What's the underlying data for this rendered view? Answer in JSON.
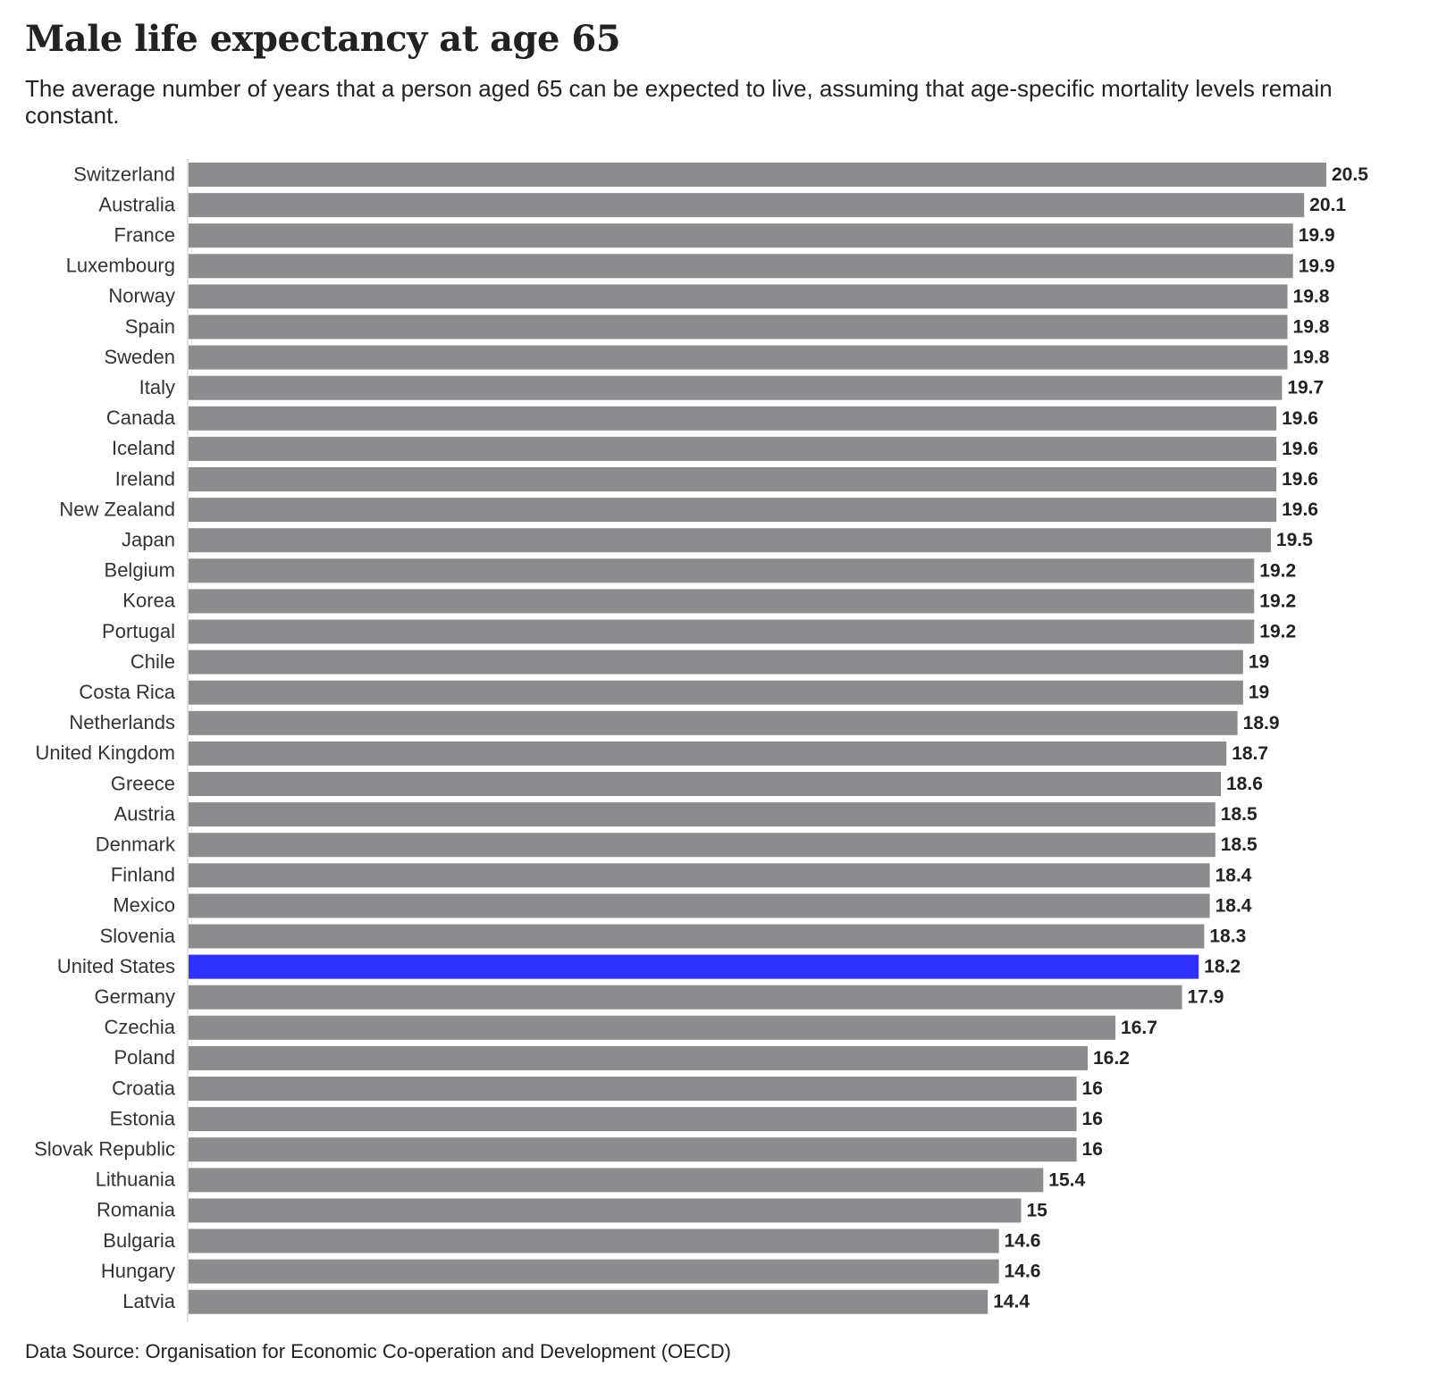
{
  "chart_data": {
    "type": "bar",
    "orientation": "horizontal",
    "title": "Male life expectancy at age 65",
    "subtitle": "The average number of years that a person aged 65 can be expected to live, assuming that age-specific mortality levels remain constant.",
    "source": "Data Source: Organisation for Economic Co-operation and Development (OECD)",
    "xlabel": "",
    "ylabel": "",
    "xlim": [
      0,
      20.5
    ],
    "grid": false,
    "categories": [
      "Switzerland",
      "Australia",
      "France",
      "Luxembourg",
      "Norway",
      "Spain",
      "Sweden",
      "Italy",
      "Canada",
      "Iceland",
      "Ireland",
      "New Zealand",
      "Japan",
      "Belgium",
      "Korea",
      "Portugal",
      "Chile",
      "Costa Rica",
      "Netherlands",
      "United Kingdom",
      "Greece",
      "Austria",
      "Denmark",
      "Finland",
      "Mexico",
      "Slovenia",
      "United States",
      "Germany",
      "Czechia",
      "Poland",
      "Croatia",
      "Estonia",
      "Slovak Republic",
      "Lithuania",
      "Romania",
      "Bulgaria",
      "Hungary",
      "Latvia"
    ],
    "values": [
      20.5,
      20.1,
      19.9,
      19.9,
      19.8,
      19.8,
      19.8,
      19.7,
      19.6,
      19.6,
      19.6,
      19.6,
      19.5,
      19.2,
      19.2,
      19.2,
      19,
      19,
      18.9,
      18.7,
      18.6,
      18.5,
      18.5,
      18.4,
      18.4,
      18.3,
      18.2,
      17.9,
      16.7,
      16.2,
      16,
      16,
      16,
      15.4,
      15,
      14.6,
      14.6,
      14.4
    ],
    "highlight": "United States",
    "colors": {
      "default": "#8c8c8f",
      "highlight": "#3030ff",
      "axis": "#e0e0e0"
    }
  }
}
